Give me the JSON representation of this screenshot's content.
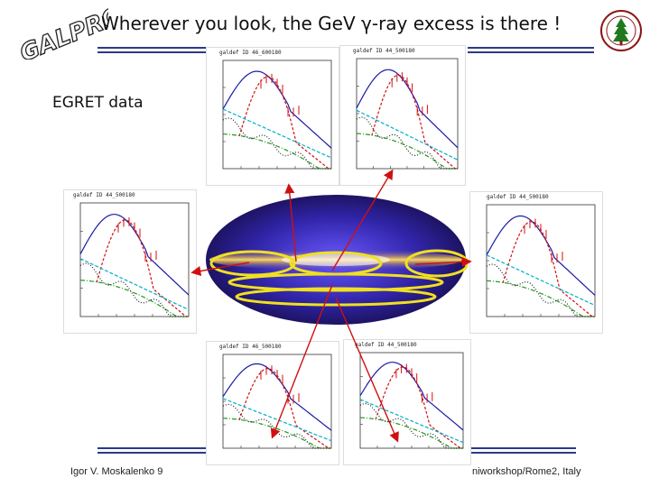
{
  "slide": {
    "title": "Wherever you look, the GeV γ-ray excess is there !",
    "logo_text": "GALPROP",
    "data_label": "EGRET data",
    "footer_left": "Igor V. Moskalenko   9",
    "footer_right": "niworkshop/Rome2, Italy"
  },
  "panels": [
    {
      "id": "top-center",
      "label": "galdef ID 46_600180"
    },
    {
      "id": "top-right",
      "label": "galdef ID 44_500180"
    },
    {
      "id": "mid-left",
      "label": "galdef ID 44_500180"
    },
    {
      "id": "mid-right",
      "label": "galdef ID 44_500180"
    },
    {
      "id": "bottom-center",
      "label": "galdef ID 46_500180"
    },
    {
      "id": "bottom-right",
      "label": "galdef ID 44_500180"
    }
  ],
  "colors": {
    "total_model": "#1a1aa8",
    "pi0_component": "#d01010",
    "ics_component": "#00b0c8",
    "bremss_component": "#209a20",
    "egret_points": "#d01010",
    "arrow": "#d01010",
    "region_ellipse": "#f0e020",
    "rule": "#2b3a8a"
  }
}
